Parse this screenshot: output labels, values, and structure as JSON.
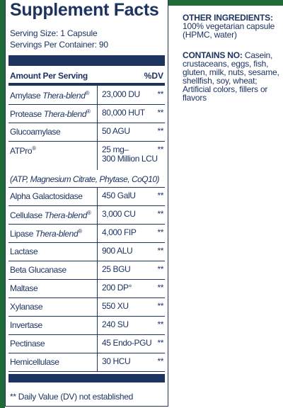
{
  "label": {
    "title": "Supplement Facts",
    "serving_size": "Serving Size: 1 Capsule",
    "servings_per_container": "Servings Per Container: 90",
    "column_amount": "Amount Per Serving",
    "column_dv": "%DV",
    "rows": [
      {
        "name": "Amylase",
        "blend": "Thera-blend",
        "reg": "®",
        "amount": "23,000 DU",
        "dv": "**"
      },
      {
        "name": "Protease",
        "blend": "Thera-blend",
        "reg": "®",
        "amount": "80,000 HUT",
        "dv": "**"
      },
      {
        "name": "Glucoamylase",
        "amount": "50 AGU",
        "dv": "**"
      },
      {
        "name": "ATPro",
        "reg": "®",
        "amount": "25 mg–",
        "amount2": "300 Million LCU",
        "sub": "(ATP, Magnesium Citrate, Phytase, CoQ10)",
        "dv": "**"
      },
      {
        "name": "Alpha Galactosidase",
        "amount": "450 GalU",
        "dv": "**"
      },
      {
        "name": "Cellulase",
        "blend": "Thera-blend",
        "reg": "®",
        "amount": "3,000 CU",
        "dv": "**"
      },
      {
        "name": "Lipase",
        "blend": "Thera-blend",
        "reg": "®",
        "amount": "4,000 FIP",
        "dv": "**"
      },
      {
        "name": "Lactase",
        "amount": "900 ALU",
        "dv": "**"
      },
      {
        "name": "Beta Glucanase",
        "amount": "25 BGU",
        "dv": "**"
      },
      {
        "name": "Maltase",
        "amount": "200 DP°",
        "dv": "**"
      },
      {
        "name": "Xylanase",
        "amount": "550 XU",
        "dv": "**"
      },
      {
        "name": "Invertase",
        "amount": "240 SU",
        "dv": "**"
      },
      {
        "name": "Pectinase",
        "amount": "45 Endo-PGU",
        "dv": "**"
      },
      {
        "name": "Hemicellulase",
        "amount": "30 HCU",
        "dv": "**"
      }
    ],
    "footnote": "** Daily Value (DV) not established"
  },
  "side": {
    "other_heading": "OTHER INGREDIENTS:",
    "other_text": "100% vegetarian capsule (HPMC, water)",
    "contains_heading": "CONTAINS NO:",
    "contains_text": "Casein, crustaceans, eggs, fish, gluten, milk, nuts, sesame, shellfish, soy, wheat; Artificial colors, fillers or flavors"
  }
}
